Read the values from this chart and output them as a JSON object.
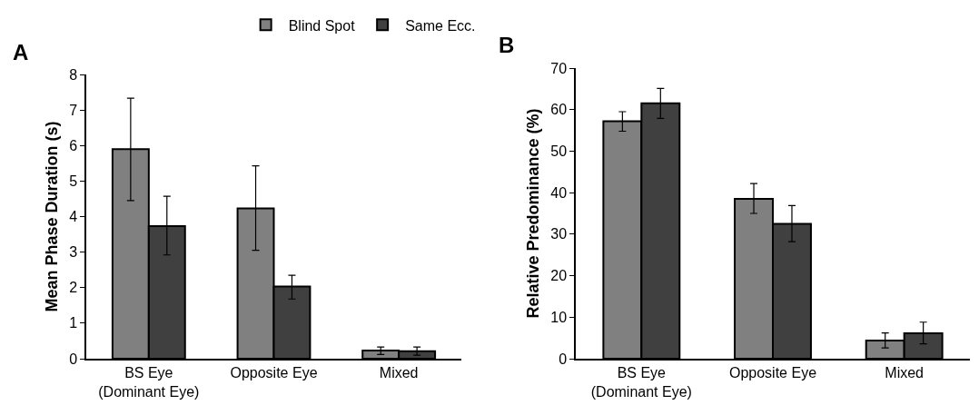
{
  "chart_data": [
    {
      "type": "bar",
      "annotations": [
        "A"
      ],
      "ylabel": "Mean Phase Duration (s)",
      "categories": [
        "BS Eye\n(Dominant Eye)",
        "Opposite Eye",
        "Mixed"
      ],
      "series": [
        {
          "name": "Blind Spot",
          "color": "#808080",
          "values": [
            5.9,
            4.23,
            0.23
          ],
          "errors": [
            [
              4.45,
              7.33
            ],
            [
              3.05,
              5.43
            ],
            [
              0.12,
              0.33
            ]
          ]
        },
        {
          "name": "Same Ecc.",
          "color": "#404040",
          "values": [
            3.73,
            2.03,
            0.21
          ],
          "errors": [
            [
              2.92,
              4.57
            ],
            [
              1.68,
              2.35
            ],
            [
              0.1,
              0.33
            ]
          ]
        }
      ],
      "ylim": [
        0,
        8
      ],
      "yticks": [
        0,
        1,
        2,
        3,
        4,
        5,
        6,
        7,
        8
      ],
      "grid": false,
      "legend": "top right"
    },
    {
      "type": "bar",
      "annotations": [
        "B"
      ],
      "ylabel": "Relative Predominance (%)",
      "categories": [
        "BS Eye\n(Dominant Eye)",
        "Opposite Eye",
        "Mixed"
      ],
      "series": [
        {
          "color": "#808080",
          "values": [
            57.2,
            38.5,
            4.4
          ],
          "errors": [
            [
              54.8,
              59.5
            ],
            [
              35,
              42.2
            ],
            [
              2.6,
              6.2
            ]
          ]
        },
        {
          "color": "#404040",
          "values": [
            61.5,
            32.5,
            6.1
          ],
          "errors": [
            [
              57.9,
              65.1
            ],
            [
              28.2,
              36.9
            ],
            [
              3.6,
              8.8
            ]
          ]
        }
      ],
      "ylim": [
        0,
        70
      ],
      "yticks": [
        0,
        10,
        20,
        30,
        40,
        50,
        60,
        70
      ],
      "grid": false,
      "legend": false
    }
  ]
}
